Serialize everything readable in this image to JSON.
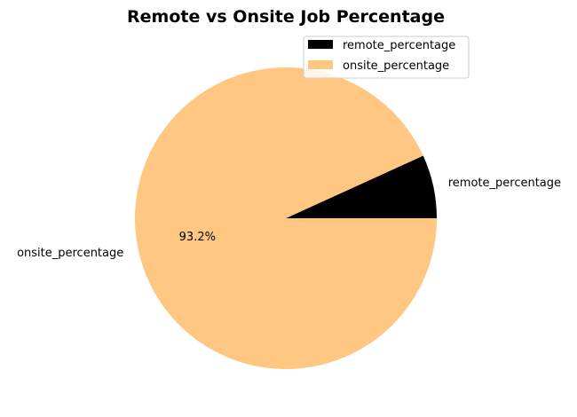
{
  "chart_data": {
    "type": "pie",
    "title": "Remote vs Onsite Job Percentage",
    "categories": [
      "remote_percentage",
      "onsite_percentage"
    ],
    "values": [
      6.8,
      93.2
    ],
    "colors": [
      "#000000",
      "#ffc782"
    ],
    "autopct_labels": [
      "",
      "93.2%"
    ],
    "start_angle_deg": 0,
    "direction": "counterclockwise",
    "legend": {
      "placement": "upper-right",
      "entries": [
        "remote_percentage",
        "onsite_percentage"
      ]
    }
  }
}
